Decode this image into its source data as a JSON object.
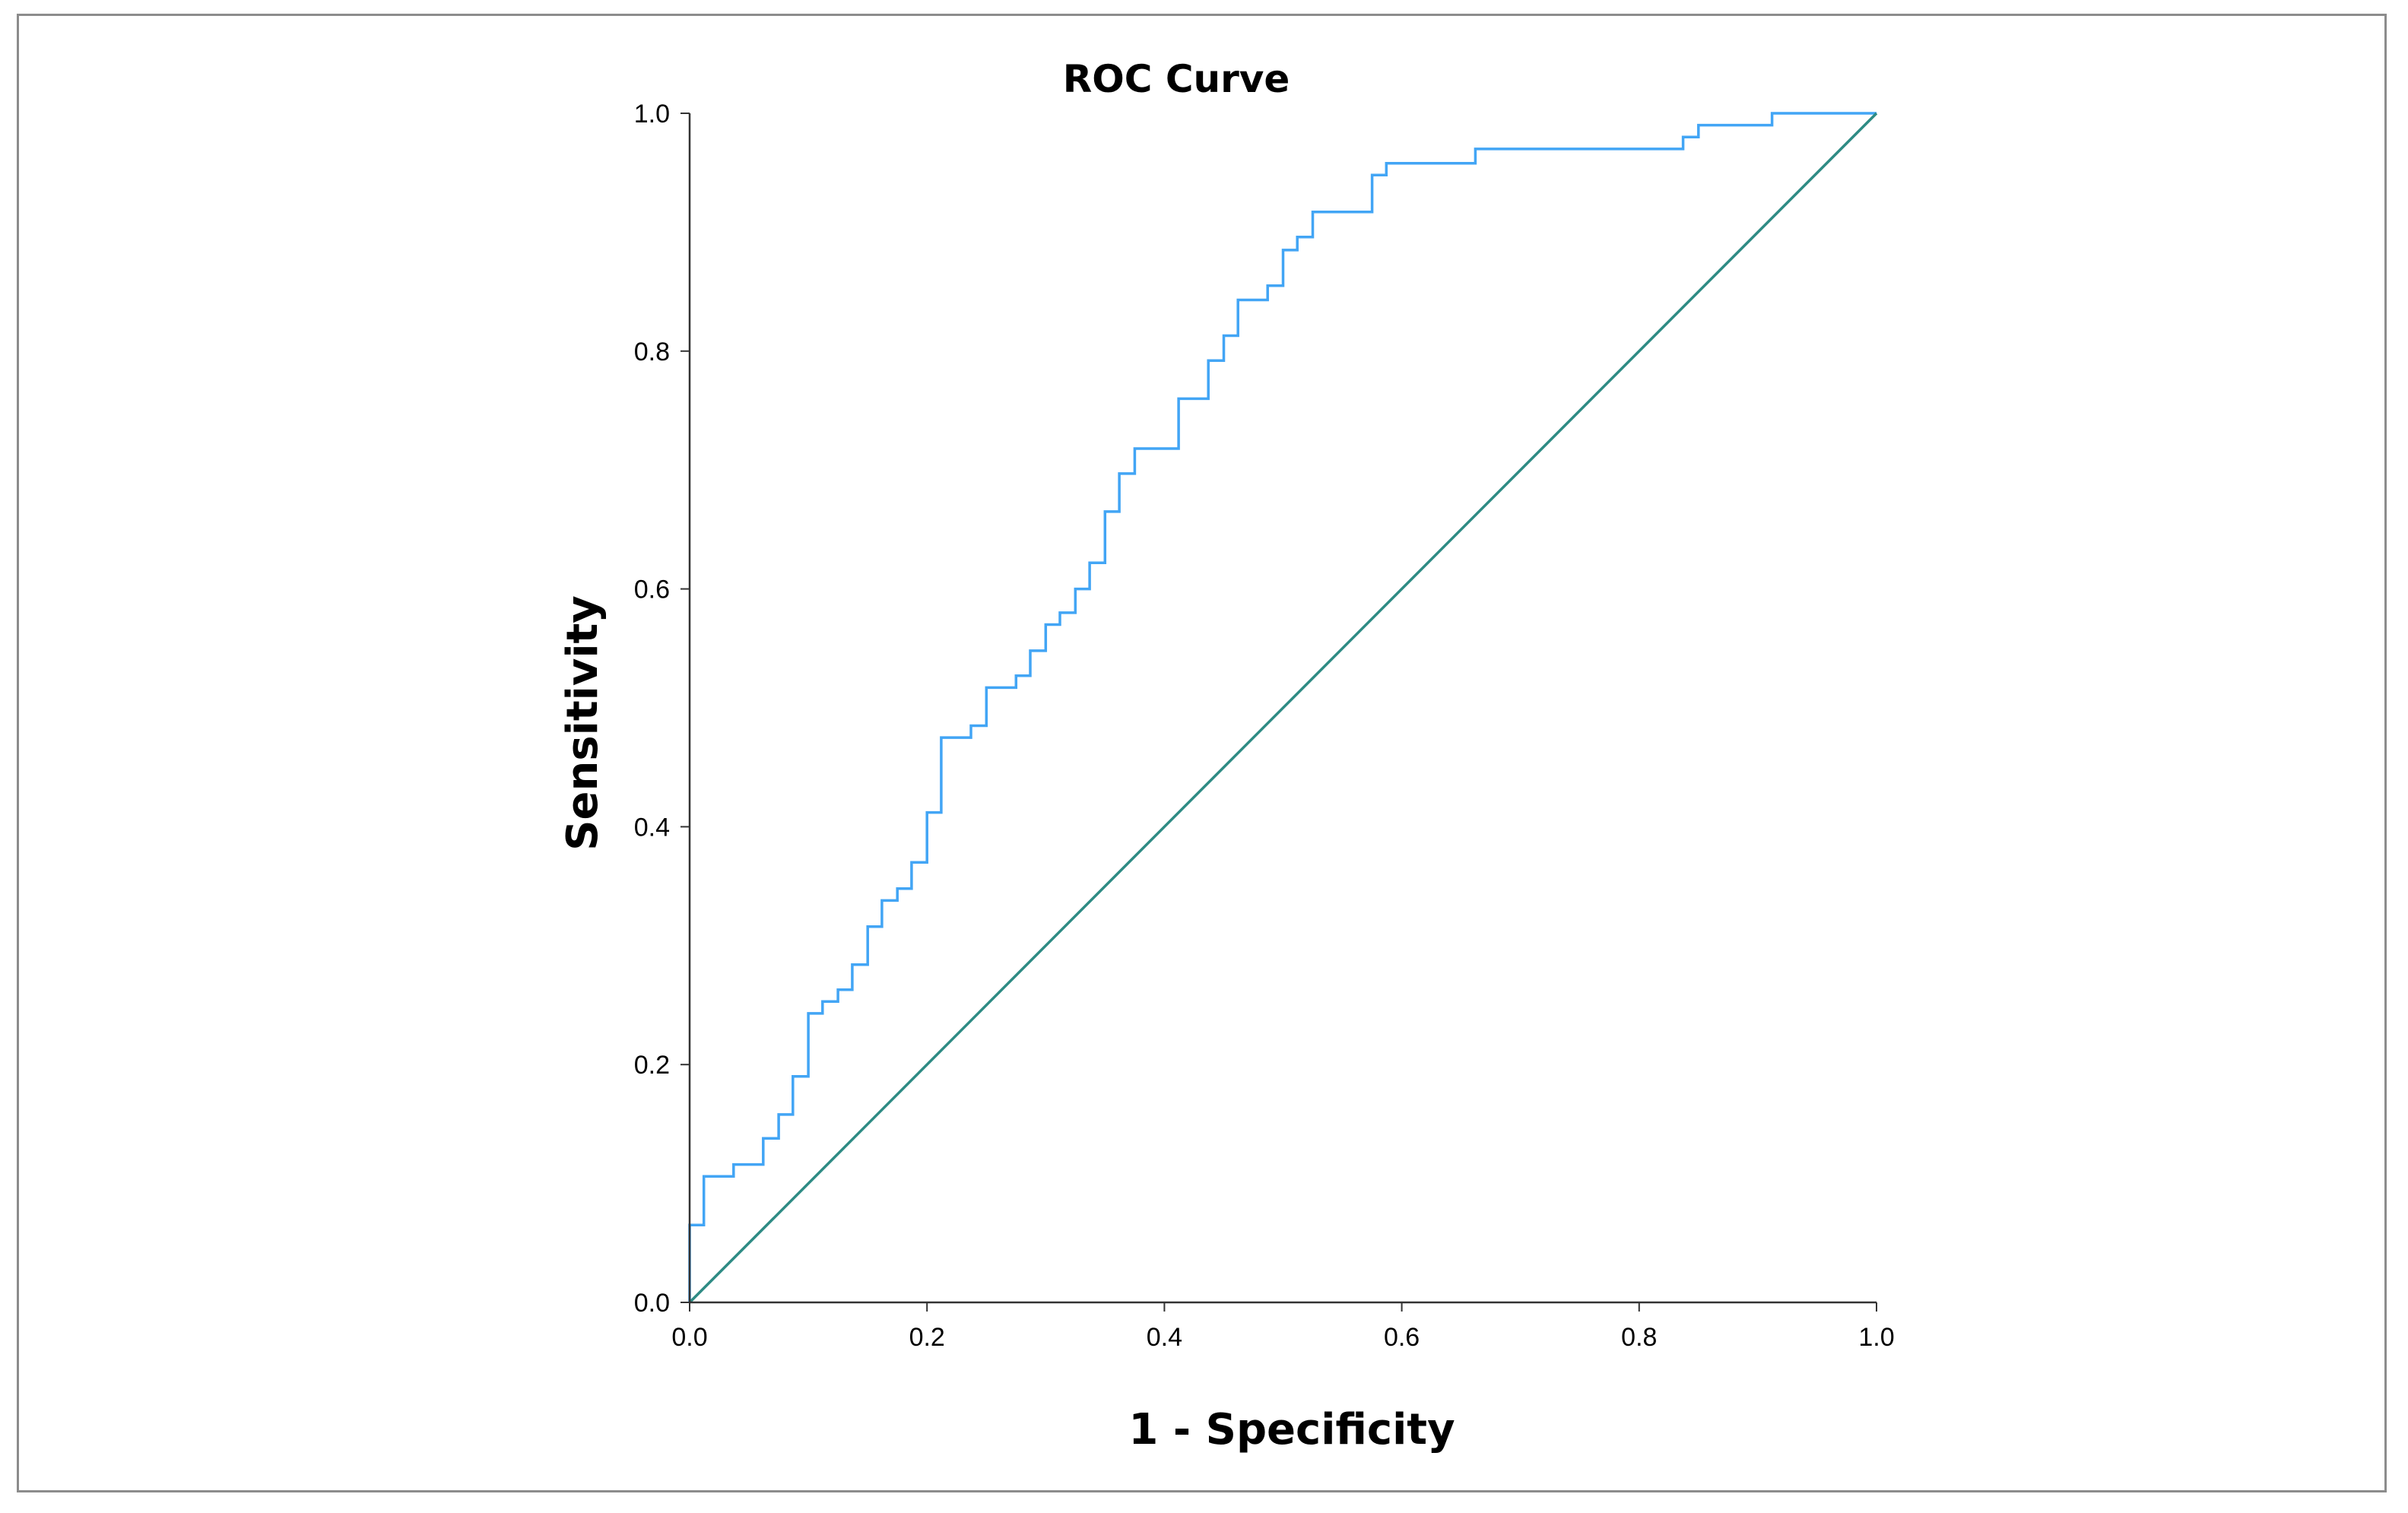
{
  "chart_data": {
    "type": "line",
    "title": "ROC Curve",
    "xlabel": "1 - Specificity",
    "ylabel": "Sensitivity",
    "xlim": [
      0,
      1
    ],
    "ylim": [
      0,
      1
    ],
    "x_ticks": [
      "0.0",
      "0.2",
      "0.4",
      "0.6",
      "0.8",
      "1.0"
    ],
    "y_ticks": [
      "0.0",
      "0.2",
      "0.4",
      "0.6",
      "0.8",
      "1.0"
    ],
    "grid": false,
    "legend": "none",
    "series": [
      {
        "color": "#42a5f5",
        "step": true,
        "points": [
          [
            0.0,
            0.0
          ],
          [
            0.0,
            0.065
          ],
          [
            0.012,
            0.065
          ],
          [
            0.012,
            0.106
          ],
          [
            0.037,
            0.106
          ],
          [
            0.037,
            0.116
          ],
          [
            0.062,
            0.116
          ],
          [
            0.062,
            0.138
          ],
          [
            0.075,
            0.138
          ],
          [
            0.075,
            0.158
          ],
          [
            0.087,
            0.158
          ],
          [
            0.087,
            0.19
          ],
          [
            0.1,
            0.19
          ],
          [
            0.1,
            0.243
          ],
          [
            0.112,
            0.243
          ],
          [
            0.112,
            0.253
          ],
          [
            0.125,
            0.253
          ],
          [
            0.125,
            0.263
          ],
          [
            0.137,
            0.263
          ],
          [
            0.137,
            0.284
          ],
          [
            0.15,
            0.284
          ],
          [
            0.15,
            0.316
          ],
          [
            0.162,
            0.316
          ],
          [
            0.162,
            0.338
          ],
          [
            0.175,
            0.338
          ],
          [
            0.175,
            0.348
          ],
          [
            0.187,
            0.348
          ],
          [
            0.187,
            0.37
          ],
          [
            0.2,
            0.37
          ],
          [
            0.2,
            0.412
          ],
          [
            0.212,
            0.412
          ],
          [
            0.212,
            0.475
          ],
          [
            0.237,
            0.475
          ],
          [
            0.237,
            0.485
          ],
          [
            0.25,
            0.485
          ],
          [
            0.25,
            0.517
          ],
          [
            0.275,
            0.517
          ],
          [
            0.275,
            0.527
          ],
          [
            0.287,
            0.527
          ],
          [
            0.287,
            0.548
          ],
          [
            0.3,
            0.548
          ],
          [
            0.3,
            0.57
          ],
          [
            0.312,
            0.57
          ],
          [
            0.312,
            0.58
          ],
          [
            0.325,
            0.58
          ],
          [
            0.325,
            0.6
          ],
          [
            0.337,
            0.6
          ],
          [
            0.337,
            0.622
          ],
          [
            0.35,
            0.622
          ],
          [
            0.35,
            0.665
          ],
          [
            0.362,
            0.665
          ],
          [
            0.362,
            0.697
          ],
          [
            0.375,
            0.697
          ],
          [
            0.375,
            0.718
          ],
          [
            0.412,
            0.718
          ],
          [
            0.412,
            0.76
          ],
          [
            0.437,
            0.76
          ],
          [
            0.437,
            0.792
          ],
          [
            0.45,
            0.792
          ],
          [
            0.45,
            0.813
          ],
          [
            0.462,
            0.813
          ],
          [
            0.462,
            0.843
          ],
          [
            0.487,
            0.843
          ],
          [
            0.487,
            0.855
          ],
          [
            0.5,
            0.855
          ],
          [
            0.5,
            0.885
          ],
          [
            0.512,
            0.885
          ],
          [
            0.512,
            0.896
          ],
          [
            0.525,
            0.896
          ],
          [
            0.525,
            0.917
          ],
          [
            0.575,
            0.917
          ],
          [
            0.575,
            0.948
          ],
          [
            0.587,
            0.948
          ],
          [
            0.587,
            0.958
          ],
          [
            0.662,
            0.958
          ],
          [
            0.662,
            0.97
          ],
          [
            0.837,
            0.97
          ],
          [
            0.837,
            0.98
          ],
          [
            0.85,
            0.98
          ],
          [
            0.85,
            0.99
          ],
          [
            0.912,
            0.99
          ],
          [
            0.912,
            1.0
          ],
          [
            1.0,
            1.0
          ]
        ]
      },
      {
        "color": "#2e8b84",
        "step": false,
        "points": [
          [
            0.0,
            0.0
          ],
          [
            1.0,
            1.0
          ]
        ]
      }
    ]
  }
}
